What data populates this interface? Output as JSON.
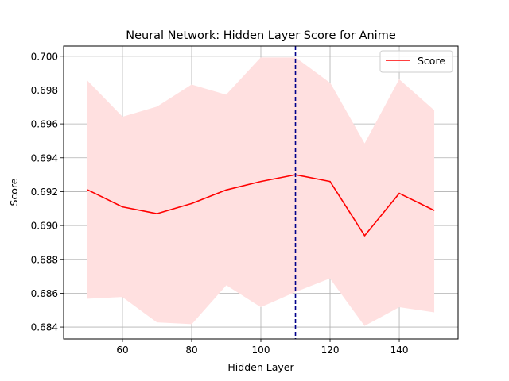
{
  "chart_data": {
    "type": "line",
    "title": "Neural Network: Hidden Layer Score for Anime",
    "xlabel": "Hidden Layer",
    "ylabel": "Score",
    "xlim": [
      43,
      157
    ],
    "ylim": [
      0.6833,
      0.7006
    ],
    "xticks": [
      60,
      80,
      100,
      120,
      140
    ],
    "yticks": [
      0.684,
      0.686,
      0.688,
      0.69,
      0.692,
      0.694,
      0.696,
      0.698,
      0.7
    ],
    "grid": true,
    "legend": {
      "position": "top-right",
      "entries": [
        "Score"
      ]
    },
    "x": [
      50,
      60,
      70,
      80,
      90,
      100,
      110,
      120,
      130,
      140,
      150
    ],
    "series": [
      {
        "name": "Score",
        "color": "#ff0000",
        "values": [
          0.6921,
          0.6911,
          0.6907,
          0.6913,
          0.6921,
          0.6926,
          0.693,
          0.6926,
          0.6894,
          0.6919,
          0.6909
        ],
        "band_upper": [
          0.6985,
          0.6964,
          0.697,
          0.6983,
          0.6977,
          0.6999,
          0.6999,
          0.6984,
          0.6948,
          0.6986,
          0.6968
        ],
        "band_lower": [
          0.6857,
          0.6858,
          0.6843,
          0.6842,
          0.6865,
          0.6852,
          0.6861,
          0.6869,
          0.6841,
          0.6852,
          0.6849
        ],
        "band_color": "#ffe0e0"
      }
    ],
    "vline": {
      "x": 110,
      "color": "#00008b",
      "style": "dashed"
    }
  }
}
